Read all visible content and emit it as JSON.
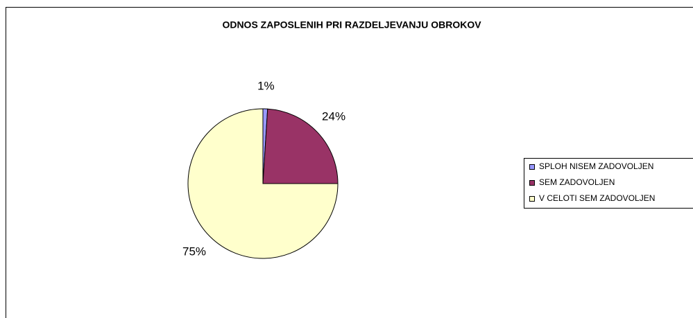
{
  "chart_data": {
    "type": "pie",
    "title": "ODNOS ZAPOSLENIH PRI RAZDELJEVANJU OBROKOV",
    "categories": [
      "SPLOH NISEM ZADOVOLJEN",
      "SEM ZADOVOLJEN",
      "V CELOTI SEM ZADOVOLJEN"
    ],
    "values": [
      1,
      24,
      75
    ],
    "value_labels": [
      "1%",
      "24%",
      "75%"
    ],
    "colors": [
      "#9999ff",
      "#993366",
      "#ffffcc"
    ],
    "legend": "right"
  }
}
